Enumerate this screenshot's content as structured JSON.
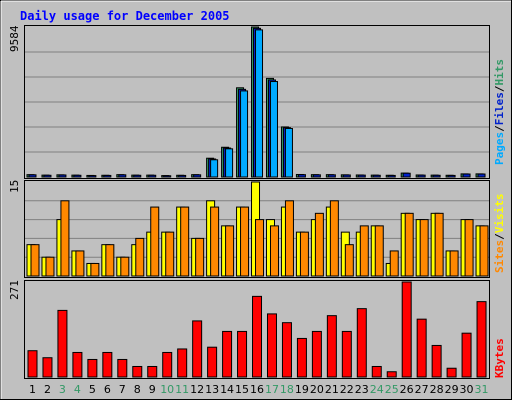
{
  "title": "Daily usage for December 2005",
  "colors": {
    "background": "#c0c0c0",
    "plot_background": "#c0c0c0",
    "grid": "#808080",
    "title": "#0000ff",
    "pages": "#00aaff",
    "files": "#0022cc",
    "hits": "#339966",
    "visits": "#ffff00",
    "sites": "#ff8800",
    "kbytes": "#ff0000",
    "weekday_label": "#000000",
    "weekend_label": "#339966",
    "slash": "#000000"
  },
  "legend": {
    "top": [
      {
        "text": "Pages",
        "color_key": "pages"
      },
      {
        "text": "/",
        "color_key": "slash"
      },
      {
        "text": "Files",
        "color_key": "files"
      },
      {
        "text": "/",
        "color_key": "slash"
      },
      {
        "text": "Hits",
        "color_key": "hits"
      }
    ],
    "middle": [
      {
        "text": "Sites",
        "color_key": "sites"
      },
      {
        "text": "/",
        "color_key": "slash"
      },
      {
        "text": "Visits",
        "color_key": "visits"
      }
    ],
    "bottom": [
      {
        "text": "KBytes",
        "color_key": "kbytes"
      }
    ]
  },
  "chart_data": [
    {
      "type": "bar",
      "panel": "hits-files-pages",
      "ymax_label": "9584",
      "ylim": [
        0,
        9584
      ],
      "categories": [
        "1",
        "2",
        "3",
        "4",
        "5",
        "6",
        "7",
        "8",
        "9",
        "10",
        "11",
        "12",
        "13",
        "14",
        "15",
        "16",
        "17",
        "18",
        "19",
        "20",
        "21",
        "22",
        "23",
        "24",
        "25",
        "26",
        "27",
        "28",
        "29",
        "30",
        "31"
      ],
      "weekend_days": [
        "3",
        "4",
        "10",
        "11",
        "17",
        "18",
        "24",
        "25",
        "31"
      ],
      "series": [
        {
          "name": "Hits",
          "color_key": "hits",
          "values": [
            150,
            120,
            140,
            120,
            100,
            110,
            150,
            120,
            120,
            90,
            110,
            150,
            1200,
            1900,
            5700,
            9584,
            6300,
            3200,
            160,
            150,
            150,
            140,
            130,
            120,
            110,
            250,
            130,
            120,
            110,
            200,
            200
          ]
        },
        {
          "name": "Files",
          "color_key": "files",
          "values": [
            140,
            110,
            130,
            110,
            90,
            100,
            140,
            110,
            110,
            80,
            100,
            140,
            1150,
            1850,
            5600,
            9500,
            6200,
            3150,
            150,
            140,
            140,
            130,
            120,
            110,
            100,
            240,
            120,
            110,
            100,
            190,
            190
          ]
        },
        {
          "name": "Pages",
          "color_key": "pages",
          "values": [
            0,
            0,
            0,
            0,
            0,
            0,
            0,
            0,
            0,
            0,
            0,
            0,
            1100,
            1800,
            5500,
            9400,
            6100,
            3100,
            0,
            0,
            0,
            0,
            0,
            0,
            0,
            0,
            0,
            0,
            0,
            0,
            0
          ]
        }
      ]
    },
    {
      "type": "bar",
      "panel": "visits-sites",
      "ymax_label": "15",
      "ylim": [
        0,
        15
      ],
      "categories": [
        "1",
        "2",
        "3",
        "4",
        "5",
        "6",
        "7",
        "8",
        "9",
        "10",
        "11",
        "12",
        "13",
        "14",
        "15",
        "16",
        "17",
        "18",
        "19",
        "20",
        "21",
        "22",
        "23",
        "24",
        "25",
        "26",
        "27",
        "28",
        "29",
        "30",
        "31"
      ],
      "series": [
        {
          "name": "Visits",
          "color_key": "visits",
          "values": [
            5,
            3,
            9,
            4,
            2,
            5,
            3,
            5,
            7,
            7,
            11,
            6,
            12,
            8,
            11,
            15,
            9,
            11,
            7,
            9,
            11,
            7,
            7,
            8,
            2,
            10,
            9,
            10,
            4,
            9,
            8
          ]
        },
        {
          "name": "Sites",
          "color_key": "sites",
          "values": [
            5,
            3,
            12,
            4,
            2,
            5,
            3,
            6,
            11,
            7,
            11,
            6,
            11,
            8,
            11,
            9,
            8,
            12,
            7,
            10,
            12,
            5,
            8,
            8,
            4,
            10,
            9,
            10,
            4,
            9,
            8
          ]
        }
      ]
    },
    {
      "type": "bar",
      "panel": "kbytes",
      "ymax_label": "271",
      "ylim": [
        0,
        271
      ],
      "categories": [
        "1",
        "2",
        "3",
        "4",
        "5",
        "6",
        "7",
        "8",
        "9",
        "10",
        "11",
        "12",
        "13",
        "14",
        "15",
        "16",
        "17",
        "18",
        "19",
        "20",
        "21",
        "22",
        "23",
        "24",
        "25",
        "26",
        "27",
        "28",
        "29",
        "30",
        "31"
      ],
      "series": [
        {
          "name": "KBytes",
          "color_key": "kbytes",
          "values": [
            75,
            55,
            190,
            70,
            50,
            70,
            50,
            30,
            30,
            70,
            80,
            160,
            85,
            130,
            130,
            230,
            180,
            155,
            110,
            130,
            175,
            130,
            195,
            30,
            15,
            271,
            165,
            90,
            25,
            125,
            215
          ]
        }
      ]
    }
  ]
}
